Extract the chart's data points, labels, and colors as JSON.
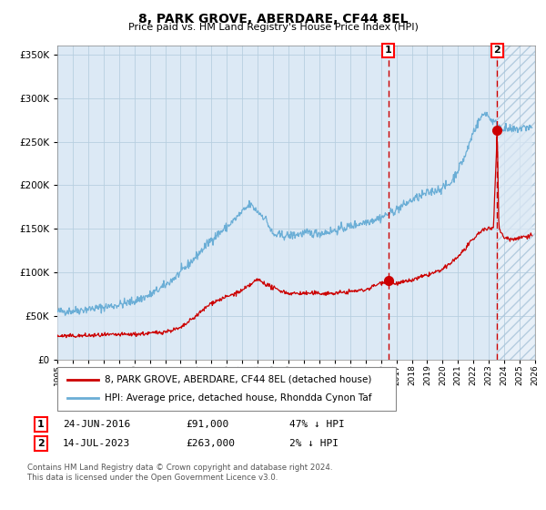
{
  "title": "8, PARK GROVE, ABERDARE, CF44 8EL",
  "subtitle": "Price paid vs. HM Land Registry's House Price Index (HPI)",
  "legend_line1": "8, PARK GROVE, ABERDARE, CF44 8EL (detached house)",
  "legend_line2": "HPI: Average price, detached house, Rhondda Cynon Taf",
  "transaction1_date": "24-JUN-2016",
  "transaction1_price": 91000,
  "transaction1_label": "47% ↓ HPI",
  "transaction1_year": 2016.48,
  "transaction2_date": "14-JUL-2023",
  "transaction2_price": 263000,
  "transaction2_label": "2% ↓ HPI",
  "transaction2_year": 2023.54,
  "footnote1": "Contains HM Land Registry data © Crown copyright and database right 2024.",
  "footnote2": "This data is licensed under the Open Government Licence v3.0.",
  "hpi_color": "#6baed6",
  "price_color": "#cc0000",
  "bg_color": "#dce9f5",
  "grid_color": "#b8cfe0",
  "ylim": [
    0,
    360000
  ],
  "xlim_start": 1995,
  "xlim_end": 2026
}
